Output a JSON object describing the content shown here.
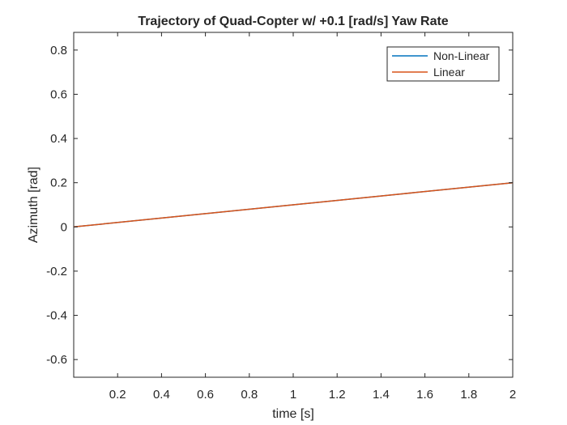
{
  "chart_data": {
    "type": "line",
    "title": "Trajectory of Quad-Copter w/ +0.1 [rad/s] Yaw Rate",
    "xlabel": "time [s]",
    "ylabel": "Azimuth [rad]",
    "xlim": [
      0,
      2
    ],
    "ylim": [
      -0.68,
      0.88
    ],
    "xticks": [
      0.2,
      0.4,
      0.6,
      0.8,
      1,
      1.2,
      1.4,
      1.6,
      1.8,
      2
    ],
    "xtick_labels": [
      "0.2",
      "0.4",
      "0.6",
      "0.8",
      "1",
      "1.2",
      "1.4",
      "1.6",
      "1.8",
      "2"
    ],
    "yticks": [
      -0.6,
      -0.4,
      -0.2,
      0,
      0.2,
      0.4,
      0.6,
      0.8
    ],
    "ytick_labels": [
      "-0.6",
      "-0.4",
      "-0.2",
      "0",
      "0.2",
      "0.4",
      "0.6",
      "0.8"
    ],
    "grid": false,
    "legend_position": "top-right",
    "series": [
      {
        "name": "Non-Linear",
        "color": "#0072BD",
        "x": [
          0,
          0.5,
          1,
          1.5,
          2
        ],
        "y": [
          0,
          0.05,
          0.1,
          0.15,
          0.2
        ]
      },
      {
        "name": "Linear",
        "color": "#D95319",
        "x": [
          0,
          0.5,
          1,
          1.5,
          2
        ],
        "y": [
          0,
          0.05,
          0.1,
          0.15,
          0.2
        ]
      }
    ]
  }
}
